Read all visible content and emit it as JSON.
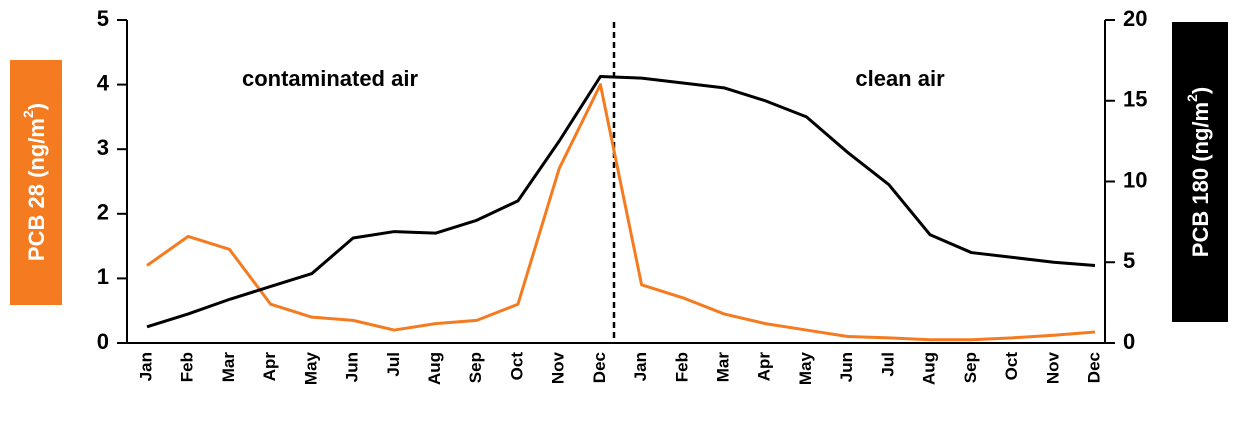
{
  "chart_data": {
    "type": "line",
    "categories": [
      "Jan",
      "Feb",
      "Mar",
      "Apr",
      "May",
      "Jun",
      "Jul",
      "Aug",
      "Sep",
      "Oct",
      "Nov",
      "Dec",
      "Jan",
      "Feb",
      "Mar",
      "Apr",
      "May",
      "Jun",
      "Jul",
      "Aug",
      "Sep",
      "Oct",
      "Nov",
      "Dec"
    ],
    "y_label": {
      "text": "PCB 28 (ng/m",
      "sup": "2",
      "close": ")"
    },
    "y2_label": {
      "text": "PCB 180 (ng/m",
      "sup": "2",
      "close": ")"
    },
    "annotations": [
      "contaminated air",
      "clean air"
    ],
    "ylim": [
      0,
      5
    ],
    "yticks": [
      0,
      1,
      2,
      3,
      4,
      5
    ],
    "y2lim": [
      0,
      20
    ],
    "y2ticks": [
      0,
      5,
      10,
      15,
      20
    ],
    "series": [
      {
        "name": "PCB 28",
        "color": "#f47b20",
        "axis": "y",
        "values": [
          1.2,
          1.65,
          1.45,
          0.6,
          0.4,
          0.35,
          0.2,
          0.3,
          0.35,
          0.6,
          2.7,
          4.0,
          0.9,
          0.7,
          0.45,
          0.3,
          0.2,
          0.1,
          0.08,
          0.05,
          0.05,
          0.08,
          0.12,
          0.17
        ]
      },
      {
        "name": "PCB 180",
        "color": "#000000",
        "axis": "y2",
        "values": [
          1.0,
          1.8,
          2.7,
          3.5,
          4.3,
          6.5,
          6.9,
          6.8,
          7.6,
          8.8,
          12.5,
          16.5,
          16.4,
          16.1,
          15.8,
          15.0,
          14.0,
          11.8,
          9.8,
          6.7,
          5.6,
          5.3,
          5.0,
          4.8
        ]
      }
    ]
  }
}
